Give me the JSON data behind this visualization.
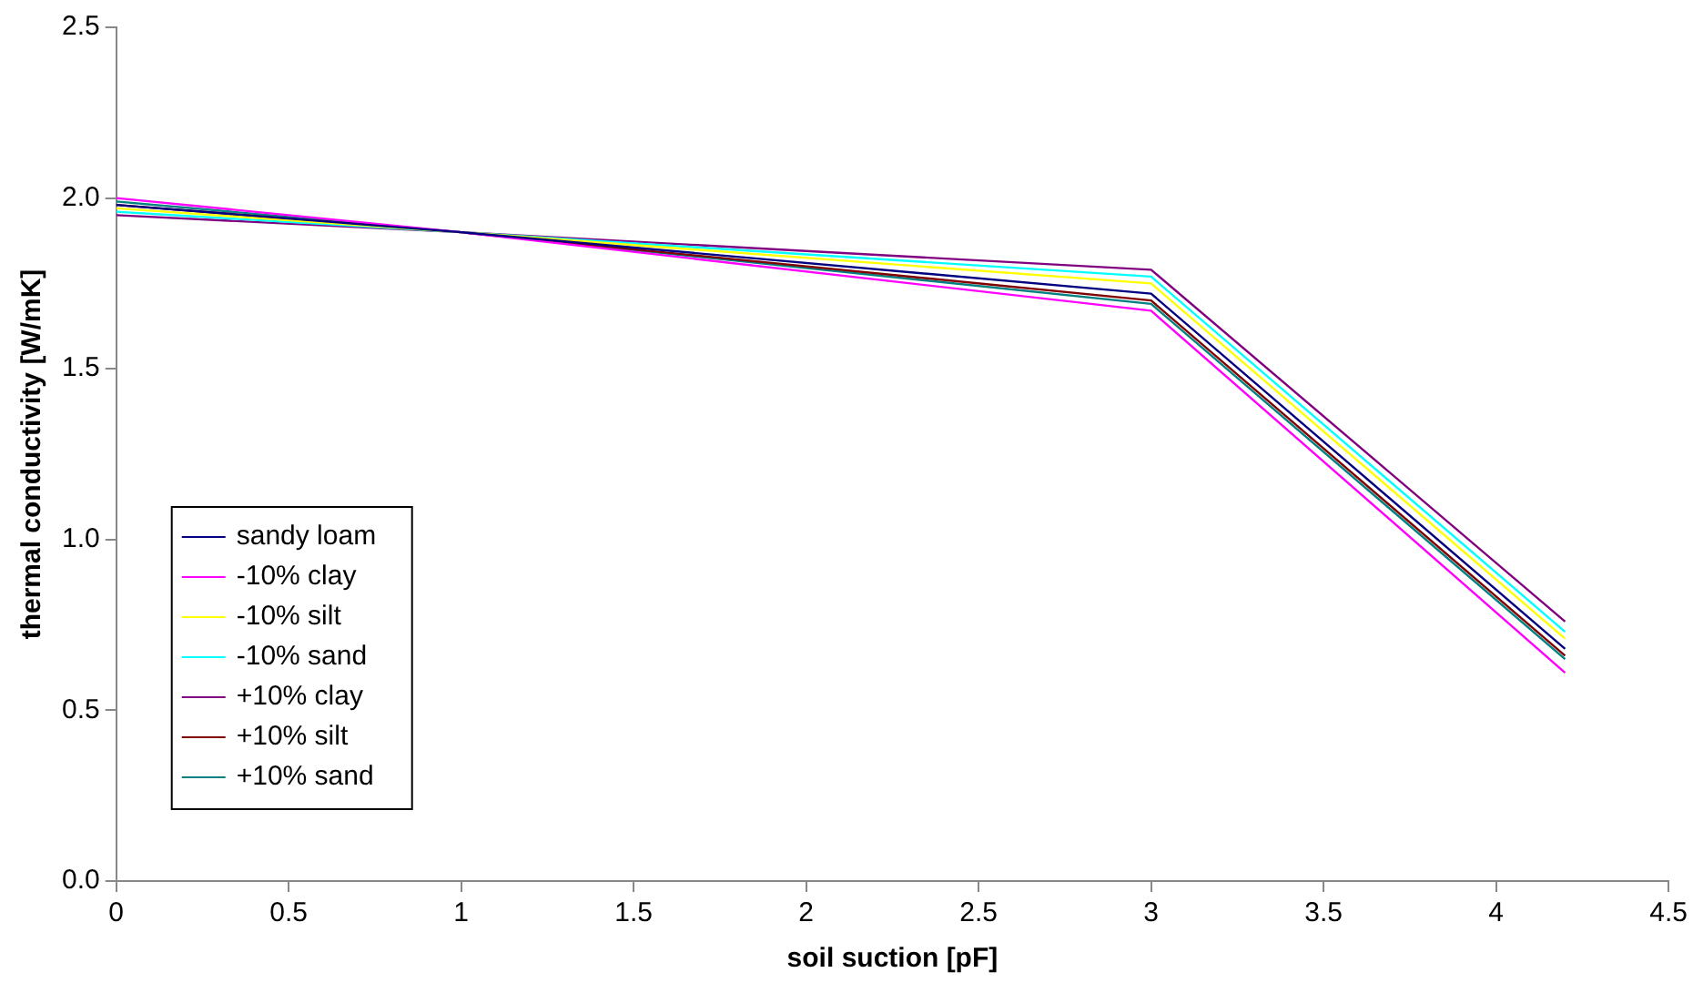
{
  "chart_data": {
    "type": "line",
    "xlabel": "soil suction [pF]",
    "ylabel": "thermal conductivity [W/mK]",
    "x": [
      0,
      1,
      3,
      4.2
    ],
    "series": [
      {
        "name": "sandy loam",
        "color": "#000080",
        "values": [
          1.98,
          1.9,
          1.72,
          0.68
        ]
      },
      {
        "name": "-10% clay",
        "color": "#ff00ff",
        "values": [
          2.0,
          1.9,
          1.67,
          0.61
        ]
      },
      {
        "name": "-10% silt",
        "color": "#ffff00",
        "values": [
          1.97,
          1.9,
          1.75,
          0.71
        ]
      },
      {
        "name": "-10% sand",
        "color": "#00ffff",
        "values": [
          1.96,
          1.9,
          1.77,
          0.73
        ]
      },
      {
        "name": "+10% clay",
        "color": "#800080",
        "values": [
          1.95,
          1.9,
          1.79,
          0.76
        ]
      },
      {
        "name": "+10% silt",
        "color": "#800000",
        "values": [
          1.98,
          1.9,
          1.7,
          0.66
        ]
      },
      {
        "name": "+10% sand",
        "color": "#008080",
        "values": [
          1.99,
          1.9,
          1.69,
          0.65
        ]
      }
    ],
    "xlim": [
      0,
      4.5
    ],
    "xticks": [
      0,
      0.5,
      1,
      1.5,
      2,
      2.5,
      3,
      3.5,
      4,
      4.5
    ],
    "ylim": [
      0,
      2.5
    ],
    "yticks": [
      {
        "value": 0,
        "label": "0.0"
      },
      {
        "value": 0.5,
        "label": "0.5"
      },
      {
        "value": 1,
        "label": "1.0"
      },
      {
        "value": 1.5,
        "label": "1.5"
      },
      {
        "value": 2,
        "label": "2.0"
      },
      {
        "value": 2.5,
        "label": "2.5"
      }
    ],
    "grid": false,
    "legend": "bottom left",
    "marker": "none",
    "line_style": "solid"
  }
}
